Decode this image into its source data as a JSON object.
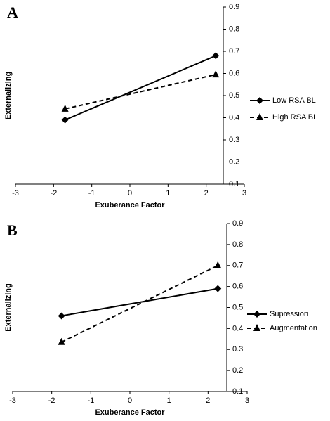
{
  "chart_data": [
    {
      "type": "line",
      "panel_label": "A",
      "x_label": "Exuberance Factor",
      "y_label": "Externalizing",
      "x": [
        -1.7,
        2.25
      ],
      "xlim": [
        -3,
        3
      ],
      "xticks": [
        -3,
        -2,
        -1,
        0,
        1,
        2,
        3
      ],
      "ylim": [
        0.1,
        0.9
      ],
      "yticks": [
        0.1,
        0.2,
        0.3,
        0.4,
        0.5,
        0.6,
        0.7,
        0.8,
        0.9
      ],
      "series": [
        {
          "name": "Low RSA BL",
          "color": "#000000",
          "marker": "diamond",
          "dash": "solid",
          "values": [
            0.39,
            0.68
          ]
        },
        {
          "name": "High RSA BL",
          "color": "#000000",
          "marker": "triangle",
          "dash": "dashed",
          "values": [
            0.44,
            0.595
          ]
        }
      ]
    },
    {
      "type": "line",
      "panel_label": "B",
      "x_label": "Exuberance Factor",
      "y_label": "Externalizing",
      "x": [
        -1.75,
        2.25
      ],
      "xlim": [
        -3,
        3
      ],
      "xticks": [
        -3,
        -2,
        -1,
        0,
        1,
        2,
        3
      ],
      "ylim": [
        0.1,
        0.9
      ],
      "yticks": [
        0.1,
        0.2,
        0.3,
        0.4,
        0.5,
        0.6,
        0.7,
        0.8,
        0.9
      ],
      "series": [
        {
          "name": "Supression",
          "color": "#000000",
          "marker": "diamond",
          "dash": "solid",
          "values": [
            0.46,
            0.59
          ]
        },
        {
          "name": "Augmentation",
          "color": "#000000",
          "marker": "triangle",
          "dash": "dashed",
          "values": [
            0.335,
            0.7
          ]
        }
      ]
    }
  ]
}
